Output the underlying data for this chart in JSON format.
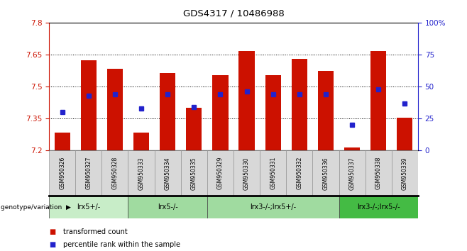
{
  "title": "GDS4317 / 10486988",
  "samples": [
    "GSM950326",
    "GSM950327",
    "GSM950328",
    "GSM950333",
    "GSM950334",
    "GSM950335",
    "GSM950329",
    "GSM950330",
    "GSM950331",
    "GSM950332",
    "GSM950336",
    "GSM950337",
    "GSM950338",
    "GSM950339"
  ],
  "bar_bottoms": [
    7.2,
    7.2,
    7.2,
    7.2,
    7.2,
    7.2,
    7.2,
    7.2,
    7.2,
    7.2,
    7.2,
    7.2,
    7.2,
    7.2
  ],
  "bar_tops": [
    7.285,
    7.625,
    7.585,
    7.285,
    7.565,
    7.4,
    7.555,
    7.665,
    7.555,
    7.63,
    7.575,
    7.215,
    7.665,
    7.355
  ],
  "percentile_values": [
    30,
    43,
    44,
    33,
    44,
    34,
    44,
    46,
    44,
    44,
    44,
    20,
    48,
    37
  ],
  "ylim_left": [
    7.2,
    7.8
  ],
  "ylim_right": [
    0,
    100
  ],
  "yticks_left": [
    7.2,
    7.35,
    7.5,
    7.65,
    7.8
  ],
  "yticks_right": [
    0,
    25,
    50,
    75,
    100
  ],
  "ytick_labels_right": [
    "0",
    "25",
    "50",
    "75",
    "100%"
  ],
  "bar_color": "#cc1100",
  "percentile_color": "#2222cc",
  "grid_color": "black",
  "groups": [
    {
      "label": "lrx5+/-",
      "start": 0,
      "end": 3,
      "color": "#c8edc8"
    },
    {
      "label": "lrx5-/-",
      "start": 3,
      "end": 6,
      "color": "#a0dba0"
    },
    {
      "label": "lrx3-/-;lrx5+/-",
      "start": 6,
      "end": 11,
      "color": "#a0dba0"
    },
    {
      "label": "lrx3-/-;lrx5-/-",
      "start": 11,
      "end": 14,
      "color": "#44bb44"
    }
  ],
  "legend_items": [
    {
      "label": "transformed count",
      "color": "#cc1100"
    },
    {
      "label": "percentile rank within the sample",
      "color": "#2222cc"
    }
  ]
}
